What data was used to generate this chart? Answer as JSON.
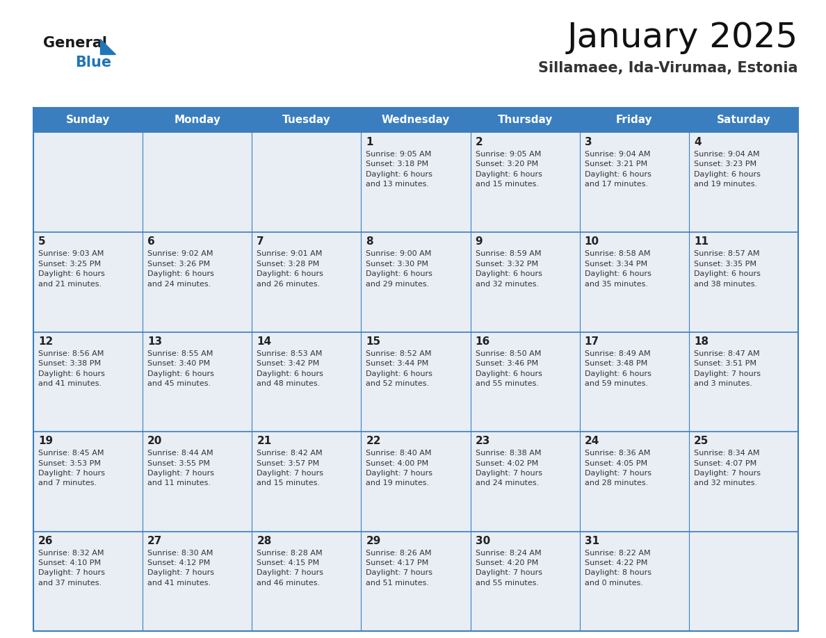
{
  "title": "January 2025",
  "subtitle": "Sillamaee, Ida-Virumaa, Estonia",
  "header_color": "#3a7ebf",
  "header_text_color": "#ffffff",
  "days_of_week": [
    "Sunday",
    "Monday",
    "Tuesday",
    "Wednesday",
    "Thursday",
    "Friday",
    "Saturday"
  ],
  "cell_bg": "#e8eef4",
  "grid_line_color": "#3a7ebf",
  "text_color": "#333333",
  "day_number_color": "#222222",
  "calendar": [
    [
      {
        "day": "",
        "info": ""
      },
      {
        "day": "",
        "info": ""
      },
      {
        "day": "",
        "info": ""
      },
      {
        "day": "1",
        "info": "Sunrise: 9:05 AM\nSunset: 3:18 PM\nDaylight: 6 hours\nand 13 minutes."
      },
      {
        "day": "2",
        "info": "Sunrise: 9:05 AM\nSunset: 3:20 PM\nDaylight: 6 hours\nand 15 minutes."
      },
      {
        "day": "3",
        "info": "Sunrise: 9:04 AM\nSunset: 3:21 PM\nDaylight: 6 hours\nand 17 minutes."
      },
      {
        "day": "4",
        "info": "Sunrise: 9:04 AM\nSunset: 3:23 PM\nDaylight: 6 hours\nand 19 minutes."
      }
    ],
    [
      {
        "day": "5",
        "info": "Sunrise: 9:03 AM\nSunset: 3:25 PM\nDaylight: 6 hours\nand 21 minutes."
      },
      {
        "day": "6",
        "info": "Sunrise: 9:02 AM\nSunset: 3:26 PM\nDaylight: 6 hours\nand 24 minutes."
      },
      {
        "day": "7",
        "info": "Sunrise: 9:01 AM\nSunset: 3:28 PM\nDaylight: 6 hours\nand 26 minutes."
      },
      {
        "day": "8",
        "info": "Sunrise: 9:00 AM\nSunset: 3:30 PM\nDaylight: 6 hours\nand 29 minutes."
      },
      {
        "day": "9",
        "info": "Sunrise: 8:59 AM\nSunset: 3:32 PM\nDaylight: 6 hours\nand 32 minutes."
      },
      {
        "day": "10",
        "info": "Sunrise: 8:58 AM\nSunset: 3:34 PM\nDaylight: 6 hours\nand 35 minutes."
      },
      {
        "day": "11",
        "info": "Sunrise: 8:57 AM\nSunset: 3:35 PM\nDaylight: 6 hours\nand 38 minutes."
      }
    ],
    [
      {
        "day": "12",
        "info": "Sunrise: 8:56 AM\nSunset: 3:38 PM\nDaylight: 6 hours\nand 41 minutes."
      },
      {
        "day": "13",
        "info": "Sunrise: 8:55 AM\nSunset: 3:40 PM\nDaylight: 6 hours\nand 45 minutes."
      },
      {
        "day": "14",
        "info": "Sunrise: 8:53 AM\nSunset: 3:42 PM\nDaylight: 6 hours\nand 48 minutes."
      },
      {
        "day": "15",
        "info": "Sunrise: 8:52 AM\nSunset: 3:44 PM\nDaylight: 6 hours\nand 52 minutes."
      },
      {
        "day": "16",
        "info": "Sunrise: 8:50 AM\nSunset: 3:46 PM\nDaylight: 6 hours\nand 55 minutes."
      },
      {
        "day": "17",
        "info": "Sunrise: 8:49 AM\nSunset: 3:48 PM\nDaylight: 6 hours\nand 59 minutes."
      },
      {
        "day": "18",
        "info": "Sunrise: 8:47 AM\nSunset: 3:51 PM\nDaylight: 7 hours\nand 3 minutes."
      }
    ],
    [
      {
        "day": "19",
        "info": "Sunrise: 8:45 AM\nSunset: 3:53 PM\nDaylight: 7 hours\nand 7 minutes."
      },
      {
        "day": "20",
        "info": "Sunrise: 8:44 AM\nSunset: 3:55 PM\nDaylight: 7 hours\nand 11 minutes."
      },
      {
        "day": "21",
        "info": "Sunrise: 8:42 AM\nSunset: 3:57 PM\nDaylight: 7 hours\nand 15 minutes."
      },
      {
        "day": "22",
        "info": "Sunrise: 8:40 AM\nSunset: 4:00 PM\nDaylight: 7 hours\nand 19 minutes."
      },
      {
        "day": "23",
        "info": "Sunrise: 8:38 AM\nSunset: 4:02 PM\nDaylight: 7 hours\nand 24 minutes."
      },
      {
        "day": "24",
        "info": "Sunrise: 8:36 AM\nSunset: 4:05 PM\nDaylight: 7 hours\nand 28 minutes."
      },
      {
        "day": "25",
        "info": "Sunrise: 8:34 AM\nSunset: 4:07 PM\nDaylight: 7 hours\nand 32 minutes."
      }
    ],
    [
      {
        "day": "26",
        "info": "Sunrise: 8:32 AM\nSunset: 4:10 PM\nDaylight: 7 hours\nand 37 minutes."
      },
      {
        "day": "27",
        "info": "Sunrise: 8:30 AM\nSunset: 4:12 PM\nDaylight: 7 hours\nand 41 minutes."
      },
      {
        "day": "28",
        "info": "Sunrise: 8:28 AM\nSunset: 4:15 PM\nDaylight: 7 hours\nand 46 minutes."
      },
      {
        "day": "29",
        "info": "Sunrise: 8:26 AM\nSunset: 4:17 PM\nDaylight: 7 hours\nand 51 minutes."
      },
      {
        "day": "30",
        "info": "Sunrise: 8:24 AM\nSunset: 4:20 PM\nDaylight: 7 hours\nand 55 minutes."
      },
      {
        "day": "31",
        "info": "Sunrise: 8:22 AM\nSunset: 4:22 PM\nDaylight: 8 hours\nand 0 minutes."
      },
      {
        "day": "",
        "info": ""
      }
    ]
  ],
  "logo_text_general": "General",
  "logo_text_blue": "Blue",
  "logo_triangle_color": "#2176b5"
}
